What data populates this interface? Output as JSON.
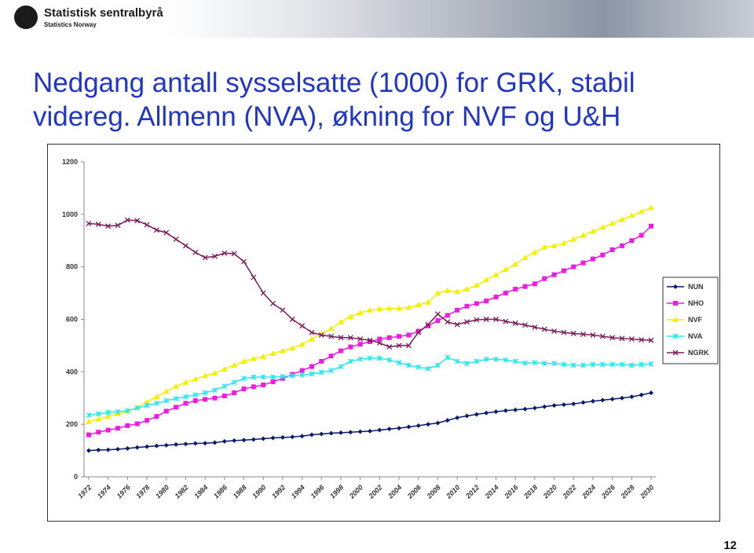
{
  "header": {
    "logo_name": "Statistisk sentralbyrå",
    "logo_subname": "Statistics Norway"
  },
  "title": "Nedgang antall sysselsatte (1000) for GRK, stabil videreg. Allmenn (NVA), økning for NVF og U&H",
  "page_number": "12",
  "chart_data": {
    "type": "line",
    "x": [
      1972,
      1973,
      1974,
      1975,
      1976,
      1977,
      1978,
      1979,
      1980,
      1981,
      1982,
      1983,
      1984,
      1985,
      1986,
      1987,
      1988,
      1989,
      1990,
      1991,
      1992,
      1993,
      1994,
      1995,
      1996,
      1997,
      1998,
      1999,
      2000,
      2001,
      2002,
      2003,
      2004,
      2005,
      2006,
      2007,
      2008,
      2009,
      2010,
      2011,
      2012,
      2013,
      2014,
      2015,
      2016,
      2017,
      2018,
      2019,
      2020,
      2021,
      2022,
      2023,
      2024,
      2025,
      2026,
      2027,
      2028,
      2029,
      2030
    ],
    "xlim": [
      1972,
      2030
    ],
    "xticks": [
      1972,
      1974,
      1976,
      1978,
      1980,
      1982,
      1984,
      1986,
      1988,
      1990,
      1992,
      1994,
      1996,
      1998,
      2000,
      2002,
      2004,
      2006,
      2008,
      2010,
      2012,
      2014,
      2016,
      2018,
      2020,
      2022,
      2024,
      2026,
      2028,
      2030
    ],
    "ylim": [
      0,
      1200
    ],
    "yticks": [
      0,
      200,
      400,
      600,
      800,
      1000,
      1200
    ],
    "legend_position": "right",
    "series": [
      {
        "name": "NUN",
        "color": "#0a1a6b",
        "marker": "diamond",
        "values": [
          100,
          102,
          103,
          105,
          108,
          112,
          115,
          118,
          120,
          123,
          125,
          127,
          128,
          130,
          135,
          138,
          140,
          142,
          145,
          148,
          150,
          152,
          155,
          160,
          163,
          166,
          168,
          170,
          172,
          174,
          178,
          182,
          185,
          190,
          195,
          200,
          205,
          215,
          225,
          232,
          238,
          243,
          248,
          252,
          255,
          258,
          262,
          267,
          272,
          275,
          278,
          283,
          288,
          292,
          296,
          300,
          305,
          312,
          320
        ]
      },
      {
        "name": "NHO",
        "color": "#ee1ce0",
        "marker": "square",
        "values": [
          160,
          170,
          178,
          185,
          195,
          202,
          215,
          230,
          250,
          265,
          280,
          290,
          295,
          300,
          308,
          320,
          335,
          343,
          350,
          362,
          375,
          390,
          405,
          420,
          440,
          460,
          480,
          495,
          505,
          515,
          525,
          530,
          535,
          540,
          555,
          575,
          595,
          615,
          635,
          650,
          660,
          670,
          685,
          700,
          715,
          725,
          735,
          755,
          770,
          785,
          800,
          815,
          830,
          845,
          865,
          880,
          900,
          920,
          955
        ]
      },
      {
        "name": "NVF",
        "color": "#f4f000",
        "marker": "triangle",
        "values": [
          210,
          220,
          230,
          240,
          250,
          265,
          285,
          305,
          325,
          345,
          360,
          372,
          385,
          395,
          410,
          425,
          440,
          450,
          458,
          470,
          480,
          490,
          505,
          525,
          545,
          565,
          590,
          610,
          625,
          635,
          640,
          642,
          642,
          645,
          655,
          665,
          700,
          710,
          705,
          715,
          730,
          750,
          770,
          790,
          810,
          835,
          855,
          875,
          880,
          890,
          905,
          920,
          935,
          950,
          965,
          980,
          995,
          1010,
          1025
        ]
      },
      {
        "name": "NVA",
        "color": "#2de6ef",
        "marker": "star",
        "values": [
          235,
          240,
          245,
          248,
          252,
          262,
          272,
          280,
          290,
          298,
          305,
          312,
          320,
          330,
          345,
          360,
          375,
          380,
          380,
          380,
          382,
          385,
          388,
          392,
          398,
          405,
          420,
          440,
          448,
          452,
          452,
          445,
          435,
          425,
          418,
          412,
          425,
          455,
          440,
          432,
          440,
          448,
          448,
          445,
          440,
          433,
          435,
          432,
          432,
          428,
          425,
          425,
          428,
          428,
          428,
          428,
          425,
          428,
          430
        ]
      },
      {
        "name": "NGRK",
        "color": "#7a1a5a",
        "marker": "cross",
        "values": [
          965,
          962,
          955,
          958,
          978,
          976,
          960,
          940,
          930,
          905,
          880,
          855,
          835,
          840,
          852,
          850,
          820,
          760,
          700,
          660,
          635,
          600,
          575,
          550,
          540,
          535,
          530,
          530,
          525,
          520,
          510,
          495,
          500,
          500,
          550,
          580,
          620,
          590,
          580,
          590,
          598,
          600,
          600,
          592,
          585,
          578,
          570,
          562,
          555,
          550,
          546,
          543,
          540,
          535,
          530,
          527,
          525,
          522,
          520
        ]
      }
    ]
  }
}
